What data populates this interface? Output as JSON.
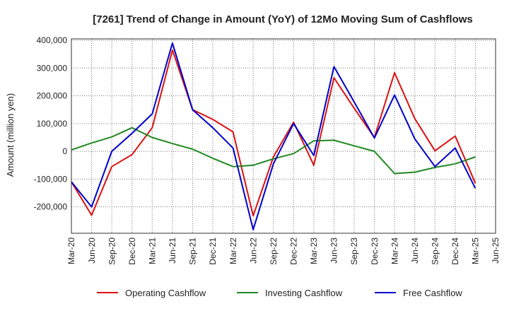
{
  "chart_data": {
    "type": "line",
    "title": "[7261]  Trend of Change in Amount (YoY) of 12Mo Moving Sum of Cashflows",
    "xlabel": "",
    "ylabel": "Amount (million yen)",
    "ylim": [
      -295000,
      405000
    ],
    "yticks": [
      400000,
      300000,
      200000,
      100000,
      0,
      -100000,
      -200000
    ],
    "ytick_labels": [
      "400,000",
      "300,000",
      "200,000",
      "100,000",
      "0",
      "-100,000",
      "-200,000"
    ],
    "categories": [
      "Mar-20",
      "Jun-20",
      "Sep-20",
      "Dec-20",
      "Mar-21",
      "Jun-21",
      "Sep-21",
      "Dec-21",
      "Mar-22",
      "Jun-22",
      "Sep-22",
      "Dec-22",
      "Mar-23",
      "Jun-23",
      "Sep-23",
      "Dec-23",
      "Mar-24",
      "Jun-24",
      "Sep-24",
      "Dec-24",
      "Mar-25",
      "Jun-25"
    ],
    "grid": true,
    "legend_position": "bottom",
    "series": [
      {
        "name": "Operating Cashflow",
        "color": "#dd1111",
        "values": [
          -110000,
          -230000,
          -55000,
          -12000,
          85000,
          365000,
          150000,
          115000,
          70000,
          -232000,
          -20000,
          105000,
          -50000,
          265000,
          155000,
          50000,
          283000,
          118000,
          2000,
          55000,
          -115000,
          null
        ]
      },
      {
        "name": "Investing Cashflow",
        "color": "#228822",
        "values": [
          5000,
          30000,
          52000,
          85000,
          50000,
          28000,
          8000,
          -25000,
          -55000,
          -50000,
          -27000,
          -8000,
          38000,
          40000,
          20000,
          0,
          -80000,
          -75000,
          -58000,
          -45000,
          -20000,
          null
        ]
      },
      {
        "name": "Free Cashflow",
        "color": "#0000cc",
        "values": [
          -110000,
          -200000,
          0,
          65000,
          135000,
          390000,
          150000,
          85000,
          12000,
          -282000,
          -45000,
          100000,
          -15000,
          305000,
          178000,
          48000,
          203000,
          45000,
          -55000,
          12000,
          -133000,
          null
        ]
      }
    ]
  }
}
